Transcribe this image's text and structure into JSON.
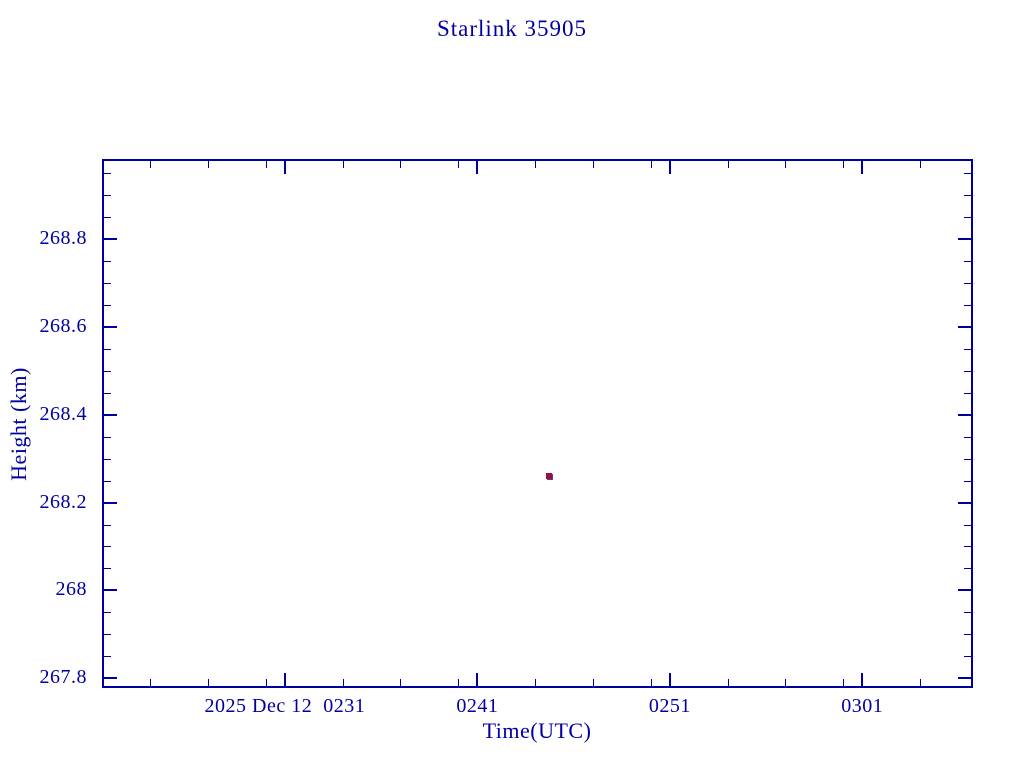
{
  "title": "Starlink 35905",
  "chart_data": {
    "type": "scatter",
    "title": "Starlink 35905",
    "xlabel": "Time(UTC)",
    "ylabel": "Height (km)",
    "x_unit": "minutes after midnight 2025 Dec 12 UTC",
    "xlim": [
      141.55,
      186.7
    ],
    "ylim": [
      267.78,
      268.98
    ],
    "grid": false,
    "legend": null,
    "axis_color": "#0000a0",
    "background": "#ffffff",
    "x_major_ticks": [
      {
        "t": 151,
        "label": "2025 Dec 12  0231"
      },
      {
        "t": 161,
        "label": "0241"
      },
      {
        "t": 171,
        "label": "0251"
      },
      {
        "t": 181,
        "label": "0301"
      }
    ],
    "x_minor_ticks": [
      144,
      147,
      150,
      154,
      157,
      160,
      164,
      167,
      170,
      174,
      177,
      180,
      184
    ],
    "y_major_ticks": [
      {
        "v": 267.8,
        "label": "267.8"
      },
      {
        "v": 268.0,
        "label": "268"
      },
      {
        "v": 268.2,
        "label": "268.2"
      },
      {
        "v": 268.4,
        "label": "268.4"
      },
      {
        "v": 268.6,
        "label": "268.6"
      },
      {
        "v": 268.8,
        "label": "268.8"
      }
    ],
    "y_minor_step": 0.05,
    "marker": {
      "shape": "square",
      "size": 6,
      "color": "#9c1038",
      "edge": "#5a3b9e"
    },
    "points": [
      {
        "t_min": 164.7,
        "time_utc": "0244.7",
        "height_km": 268.26
      }
    ]
  }
}
